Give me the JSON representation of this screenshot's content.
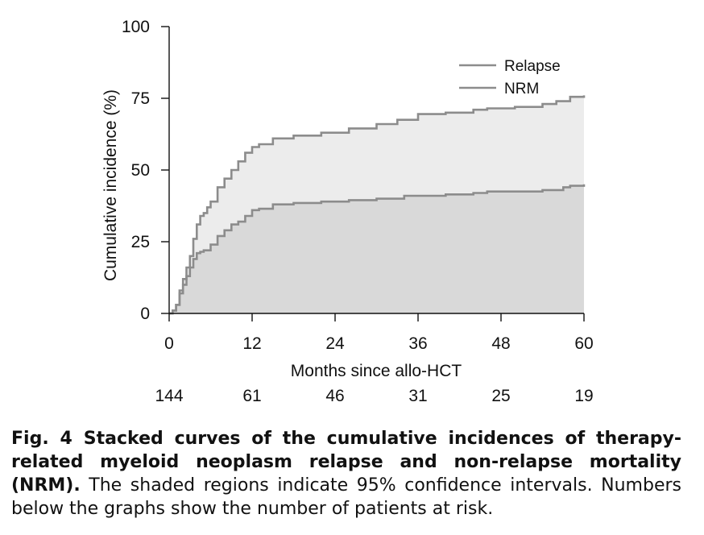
{
  "chart_data": {
    "type": "area",
    "xlabel": "Months since allo-HCT",
    "ylabel": "Cumulative incidence (%)",
    "xlim": [
      0,
      60
    ],
    "ylim": [
      0,
      100
    ],
    "x_ticks": [
      0,
      12,
      24,
      36,
      48,
      60
    ],
    "y_ticks": [
      0,
      25,
      50,
      75,
      100
    ],
    "at_risk": [
      144,
      61,
      46,
      31,
      25,
      19
    ],
    "legend_position": "top-right",
    "colors": {
      "line": "#8c8c8c",
      "lower_fill": "#d9d9d9",
      "upper_fill": "#ececec",
      "axis": "#111111"
    },
    "series": [
      {
        "name": "Relapse",
        "x": [
          0,
          0.5,
          1,
          1.5,
          2,
          2.5,
          3,
          3.5,
          4,
          4.5,
          5,
          6,
          7,
          8,
          9,
          10,
          11,
          12,
          13,
          15,
          18,
          22,
          26,
          30,
          34,
          36,
          40,
          44,
          46,
          50,
          54,
          57,
          58,
          60
        ],
        "values": [
          0,
          1,
          3,
          7,
          10,
          13,
          16,
          19,
          21,
          21.5,
          22,
          24,
          27,
          29,
          31,
          32,
          34,
          36,
          36.5,
          38,
          38.5,
          39,
          39.5,
          40,
          41,
          41,
          41.5,
          42,
          42.5,
          42.5,
          43,
          44,
          44.5,
          45
        ]
      },
      {
        "name": "NRM",
        "x": [
          0,
          0.5,
          1,
          1.5,
          2,
          2.5,
          3,
          3.5,
          4,
          4.5,
          5,
          5.5,
          6,
          7,
          8,
          9,
          10,
          11,
          12,
          13,
          15,
          18,
          22,
          26,
          30,
          33,
          36,
          40,
          44,
          46,
          50,
          54,
          56,
          58,
          60
        ],
        "values": [
          0,
          1,
          3,
          8,
          12,
          16,
          20,
          26,
          31,
          34,
          35,
          37,
          39,
          44,
          47,
          50,
          53,
          56,
          58,
          59,
          61,
          62,
          63,
          64.5,
          66,
          67.5,
          69.5,
          70,
          71,
          71.5,
          72,
          73,
          74,
          75.5,
          76
        ]
      }
    ]
  },
  "caption": {
    "fig_label": "Fig. 4",
    "bold_text": "Stacked curves of the cumulative incidences of therapy-related myeloid neoplasm relapse and non-relapse mortality (NRM).",
    "body_text": "The shaded regions indicate 95% confidence intervals. Numbers below the graphs show the number of patients at risk."
  }
}
